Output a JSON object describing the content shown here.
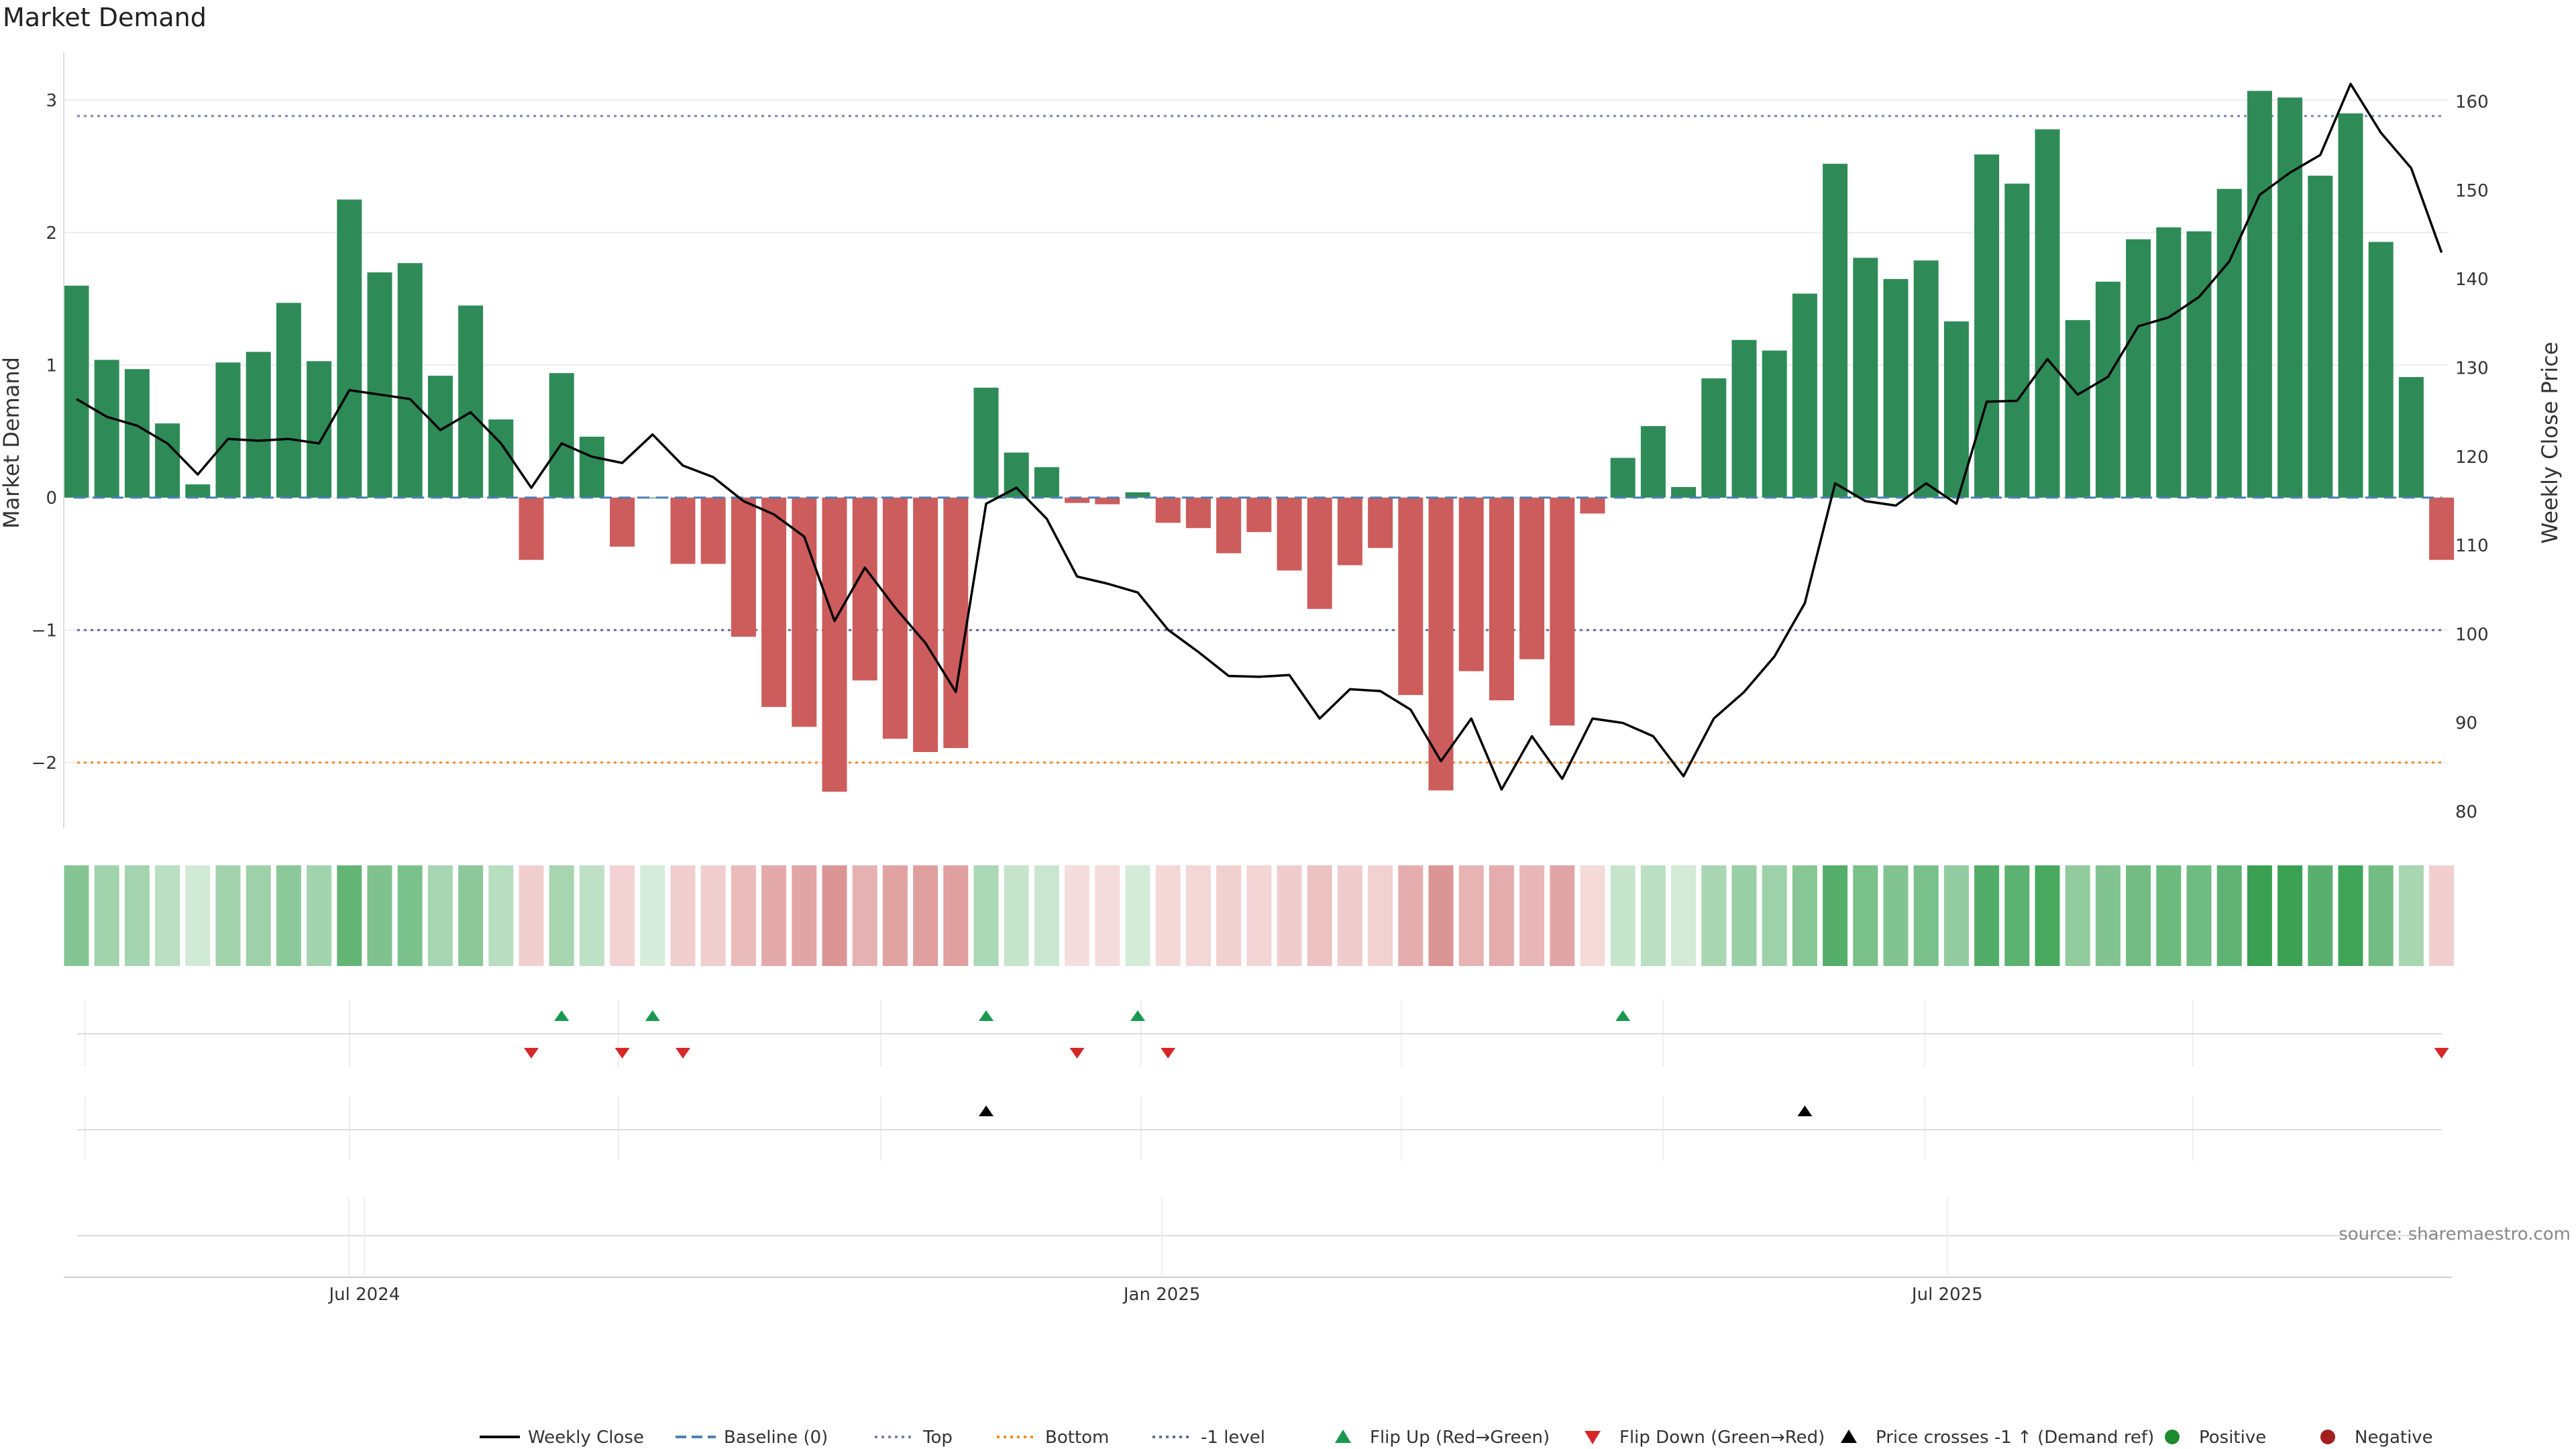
{
  "title": "Market Demand",
  "source": "source: sharemaestro.com",
  "chart_data": {
    "type": "bar",
    "title": "Market Demand",
    "ylabel": "Market Demand",
    "y2label": "Weekly Close Price",
    "ylim": [
      -2.5,
      3.4
    ],
    "y2lim": [
      77.5,
      165.5
    ],
    "yticks": [
      3,
      2,
      1,
      0,
      -1,
      -2
    ],
    "ytick_labels": [
      "3",
      "2",
      "1",
      "0",
      "−1",
      "−2"
    ],
    "y2ticks": [
      160,
      150,
      140,
      130,
      120,
      110,
      100,
      90,
      80
    ],
    "x_labels": [
      {
        "label": "Jul 2024",
        "index": 9.5
      },
      {
        "label": "Jan 2025",
        "index": 35.8
      },
      {
        "label": "Jul 2025",
        "index": 61.7
      }
    ],
    "levels": {
      "top": 2.88,
      "bottom": -2.0,
      "minus_one": -1.0,
      "baseline": 0
    },
    "colors": {
      "positive": "#2e8b57",
      "negative": "#cd5c5c",
      "price": "#000000",
      "top": "#7b7fb0",
      "bottom": "#f28c28",
      "minus_one": "#666699",
      "baseline": "#4a7fb5",
      "flip_up": "#1a9850",
      "flip_down": "#d62728"
    },
    "values": [
      1.6,
      1.04,
      0.97,
      0.56,
      0.1,
      1.02,
      1.1,
      1.47,
      1.03,
      2.25,
      1.7,
      1.77,
      0.92,
      1.45,
      0.59,
      -0.47,
      0.94,
      0.46,
      -0.37,
      0.0,
      -0.5,
      -0.5,
      -1.05,
      -1.58,
      -1.73,
      -2.22,
      -1.38,
      -1.82,
      -1.92,
      -1.89,
      0.83,
      0.34,
      0.23,
      -0.04,
      -0.05,
      0.04,
      -0.19,
      -0.23,
      -0.42,
      -0.26,
      -0.55,
      -0.84,
      -0.51,
      -0.38,
      -1.49,
      -2.21,
      -1.31,
      -1.53,
      -1.22,
      -1.72,
      -0.12,
      0.3,
      0.54,
      0.08,
      0.9,
      1.19,
      1.11,
      1.54,
      2.52,
      1.81,
      1.65,
      1.79,
      1.33,
      2.59,
      2.37,
      2.78,
      1.34,
      1.63,
      1.95,
      2.04,
      2.01,
      2.33,
      3.07,
      3.02,
      2.43,
      2.9,
      1.93,
      0.91,
      -0.47
    ],
    "price": [
      126.5,
      124.5,
      123.5,
      121.5,
      118.0,
      122.0,
      121.8,
      122.0,
      121.5,
      127.5,
      127.0,
      126.5,
      123.0,
      125.0,
      121.5,
      116.5,
      121.5,
      120.0,
      119.3,
      122.5,
      119.0,
      117.7,
      115.0,
      113.5,
      111.0,
      101.5,
      107.5,
      103.0,
      99.0,
      93.5,
      114.7,
      116.5,
      113.0,
      106.5,
      105.7,
      104.7,
      100.5,
      98.0,
      95.3,
      95.2,
      95.4,
      90.5,
      93.8,
      93.6,
      91.5,
      85.7,
      90.5,
      82.5,
      88.5,
      83.7,
      90.5,
      90.0,
      88.5,
      84.0,
      90.5,
      93.5,
      97.5,
      103.5,
      117.0,
      115.0,
      114.5,
      117.0,
      114.7,
      126.2,
      126.3,
      131.0,
      127.0,
      129.0,
      134.7,
      135.7,
      138.0,
      142.0,
      149.5,
      152.0,
      154.0,
      162.0,
      156.5,
      152.5,
      143.0
    ],
    "flip_up_indices": [
      16,
      19,
      30,
      35,
      51
    ],
    "flip_down_indices": [
      15,
      18,
      20,
      33,
      36,
      78
    ],
    "price_cross_indices": [
      30,
      57
    ],
    "legend": [
      {
        "type": "line",
        "label": "Weekly Close",
        "color": "#000000"
      },
      {
        "type": "dash",
        "label": "Baseline (0)",
        "color": "#4a7fb5"
      },
      {
        "type": "dot",
        "label": "Top",
        "color": "#7b7fb0"
      },
      {
        "type": "dot",
        "label": "Bottom",
        "color": "#f28c28"
      },
      {
        "type": "dot",
        "label": "-1 level",
        "color": "#666699"
      },
      {
        "type": "tri-up",
        "label": "Flip Up (Red→Green)",
        "color": "#1a9850"
      },
      {
        "type": "tri-down",
        "label": "Flip Down (Green→Red)",
        "color": "#d62728"
      },
      {
        "type": "tri-up",
        "label": "Price crosses -1 ↑ (Demand ref)",
        "color": "#000000"
      },
      {
        "type": "circle",
        "label": "Positive",
        "color": "#1f8b2f"
      },
      {
        "type": "circle",
        "label": "Negative",
        "color": "#a31f1f"
      }
    ]
  }
}
